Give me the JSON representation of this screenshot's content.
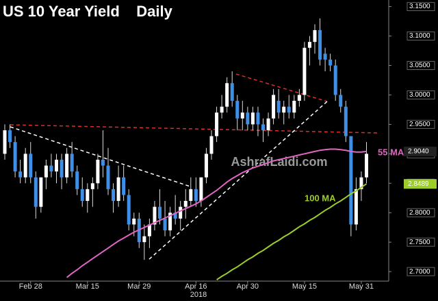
{
  "chart_data": {
    "type": "candlestick",
    "title": "US 10 Year Yield    Daily",
    "x_axis_year": "2018",
    "watermark": "AshrafLaidi.com",
    "categories": [
      null,
      null,
      null,
      null,
      null,
      "Feb 28",
      null,
      null,
      null,
      null,
      null,
      null,
      null,
      null,
      null,
      null,
      "Mar 15",
      null,
      null,
      null,
      null,
      null,
      null,
      null,
      null,
      null,
      "Mar 29",
      null,
      null,
      null,
      null,
      null,
      null,
      null,
      null,
      null,
      null,
      "Apr 16",
      null,
      null,
      null,
      null,
      null,
      null,
      null,
      null,
      null,
      "Apr 30",
      null,
      null,
      null,
      null,
      null,
      null,
      null,
      null,
      null,
      null,
      "May 15",
      null,
      null,
      null,
      null,
      null,
      null,
      null,
      null,
      null,
      null,
      "May 31",
      null
    ],
    "open": [
      2.9,
      2.94,
      2.92,
      2.87,
      2.86,
      2.9,
      2.86,
      2.81,
      2.86,
      2.88,
      2.87,
      2.89,
      2.86,
      2.9,
      2.87,
      2.84,
      2.82,
      2.84,
      2.85,
      2.89,
      2.88,
      2.84,
      2.82,
      2.86,
      2.83,
      2.78,
      2.79,
      2.75,
      2.76,
      2.78,
      2.81,
      2.79,
      2.77,
      2.8,
      2.79,
      2.81,
      2.82,
      2.84,
      2.82,
      2.86,
      2.9,
      2.93,
      2.97,
      2.98,
      3.02,
      2.99,
      2.96,
      2.97,
      2.95,
      2.97,
      2.95,
      2.94,
      2.96,
      2.99,
      2.97,
      2.98,
      2.97,
      2.99,
      3.0,
      3.08,
      3.09,
      3.11,
      3.07,
      3.06,
      3.05,
      3.0,
      2.98,
      2.93,
      2.78,
      2.84,
      2.86
    ],
    "high": [
      2.95,
      2.95,
      2.93,
      2.89,
      2.91,
      2.92,
      2.87,
      2.86,
      2.89,
      2.9,
      2.9,
      2.9,
      2.91,
      2.92,
      2.88,
      2.86,
      2.85,
      2.86,
      2.9,
      2.94,
      2.91,
      2.85,
      2.88,
      2.88,
      2.84,
      2.8,
      2.8,
      2.78,
      2.79,
      2.82,
      2.84,
      2.82,
      2.81,
      2.83,
      2.82,
      2.84,
      2.86,
      2.86,
      2.86,
      2.91,
      2.94,
      2.98,
      3.0,
      3.03,
      3.04,
      3.0,
      2.99,
      2.98,
      2.98,
      2.98,
      2.96,
      2.97,
      3.01,
      3.01,
      2.99,
      3.0,
      3.0,
      3.01,
      3.09,
      3.1,
      3.12,
      3.13,
      3.08,
      3.07,
      3.06,
      3.01,
      2.99,
      2.93,
      2.86,
      2.87,
      2.92
    ],
    "low": [
      2.89,
      2.91,
      2.86,
      2.85,
      2.85,
      2.85,
      2.79,
      2.8,
      2.84,
      2.86,
      2.85,
      2.84,
      2.85,
      2.86,
      2.83,
      2.81,
      2.8,
      2.81,
      2.84,
      2.86,
      2.83,
      2.8,
      2.81,
      2.82,
      2.77,
      2.76,
      2.74,
      2.72,
      2.74,
      2.77,
      2.78,
      2.76,
      2.76,
      2.78,
      2.77,
      2.79,
      2.81,
      2.81,
      2.81,
      2.85,
      2.89,
      2.92,
      2.96,
      2.97,
      2.98,
      2.94,
      2.94,
      2.94,
      2.94,
      2.93,
      2.92,
      2.93,
      2.95,
      2.96,
      2.95,
      2.96,
      2.96,
      2.98,
      2.99,
      3.05,
      3.07,
      3.05,
      3.04,
      3.04,
      2.99,
      2.97,
      2.92,
      2.76,
      2.77,
      2.82,
      2.85
    ],
    "close": [
      2.94,
      2.92,
      2.87,
      2.86,
      2.9,
      2.86,
      2.81,
      2.86,
      2.88,
      2.87,
      2.89,
      2.86,
      2.9,
      2.87,
      2.84,
      2.82,
      2.84,
      2.85,
      2.89,
      2.88,
      2.84,
      2.82,
      2.86,
      2.83,
      2.78,
      2.79,
      2.75,
      2.76,
      2.78,
      2.81,
      2.79,
      2.77,
      2.8,
      2.79,
      2.81,
      2.82,
      2.84,
      2.82,
      2.86,
      2.9,
      2.93,
      2.97,
      2.98,
      3.02,
      2.99,
      2.96,
      2.97,
      2.95,
      2.97,
      2.95,
      2.94,
      2.96,
      3.0,
      2.97,
      2.98,
      2.97,
      2.99,
      3.0,
      3.08,
      3.09,
      3.11,
      3.06,
      3.06,
      3.05,
      3.0,
      2.98,
      2.93,
      2.78,
      2.84,
      2.86,
      2.9
    ],
    "up_color": "#ffffff",
    "down_color": "#3f8fe6",
    "series": [
      {
        "name": "55 MA",
        "color": "#e066c4",
        "last_value": {
          "value": 2.904,
          "label": "2.9040"
        },
        "values": [
          null,
          null,
          null,
          null,
          null,
          null,
          null,
          null,
          null,
          null,
          null,
          null,
          2.69,
          2.697,
          2.703,
          2.71,
          2.716,
          2.722,
          2.728,
          2.734,
          2.74,
          2.746,
          2.752,
          2.757,
          2.762,
          2.767,
          2.771,
          2.775,
          2.779,
          2.783,
          2.787,
          2.791,
          2.795,
          2.799,
          2.803,
          2.807,
          2.811,
          2.815,
          2.82,
          2.826,
          2.832,
          2.838,
          2.845,
          2.852,
          2.858,
          2.863,
          2.868,
          2.872,
          2.876,
          2.879,
          2.882,
          2.885,
          2.888,
          2.89,
          2.892,
          2.894,
          2.896,
          2.898,
          2.9,
          2.902,
          2.904,
          2.906,
          2.907,
          2.908,
          2.908,
          2.907,
          2.906,
          2.904,
          2.903,
          2.903,
          2.904
        ]
      },
      {
        "name": "100 MA",
        "color": "#9ccd2a",
        "last_value": {
          "value": 2.8489,
          "label": "2.8489"
        },
        "values": [
          null,
          null,
          null,
          null,
          null,
          null,
          null,
          null,
          null,
          null,
          null,
          null,
          null,
          null,
          null,
          null,
          null,
          null,
          null,
          null,
          null,
          null,
          null,
          null,
          null,
          null,
          null,
          null,
          null,
          null,
          null,
          null,
          null,
          null,
          null,
          null,
          null,
          null,
          null,
          null,
          null,
          2.686,
          2.692,
          2.697,
          2.703,
          2.708,
          2.714,
          2.72,
          2.725,
          2.731,
          2.736,
          2.742,
          2.748,
          2.753,
          2.759,
          2.764,
          2.77,
          2.776,
          2.781,
          2.787,
          2.792,
          2.798,
          2.804,
          2.809,
          2.815,
          2.82,
          2.826,
          2.832,
          2.837,
          2.843,
          2.849
        ]
      }
    ],
    "ylim": [
      2.685,
      3.16
    ],
    "yticks": [
      {
        "value": 2.7,
        "label": "2.7000"
      },
      {
        "value": 2.75,
        "label": "2.7500"
      },
      {
        "value": 2.8,
        "label": "2.8000"
      },
      {
        "value": 2.85,
        "label": "2.8500"
      },
      {
        "value": 2.9,
        "label": "2.9000"
      },
      {
        "value": 2.95,
        "label": "2.9500"
      },
      {
        "value": 3.0,
        "label": "3.0000"
      },
      {
        "value": 3.05,
        "label": "3.0500"
      },
      {
        "value": 3.1,
        "label": "3.1000"
      },
      {
        "value": 3.15,
        "label": "3.1500"
      }
    ],
    "grid": false
  }
}
